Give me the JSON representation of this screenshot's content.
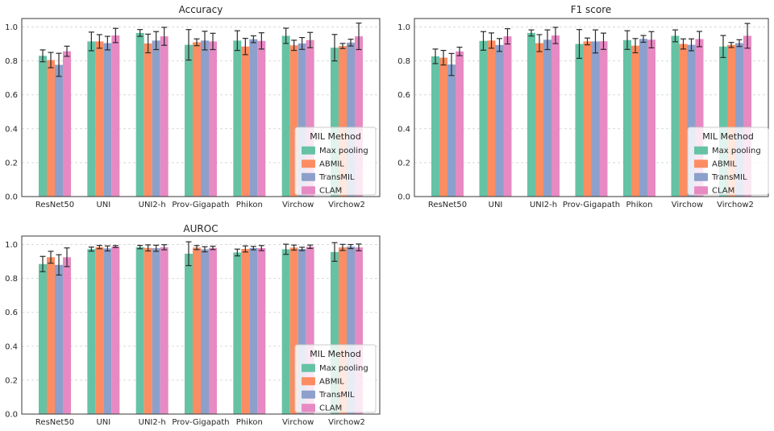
{
  "figure": {
    "background": "#ffffff",
    "grid_color": "#d9d9d9",
    "spine_color": "#3a3a3a",
    "text_color": "#262626",
    "errorbar_color": "#2b2b2b",
    "legend_fill": "rgba(255,255,255,0.8)",
    "legend_border": "#cccccc"
  },
  "palette": {
    "Max pooling": "#66c2a5",
    "ABMIL": "#fc8d62",
    "TransMIL": "#8da0cb",
    "CLAM": "#e78ac3"
  },
  "legend": {
    "title": "MIL Method",
    "entries": [
      "Max pooling",
      "ABMIL",
      "TransMIL",
      "CLAM"
    ],
    "position": "lower right"
  },
  "chart_data": [
    {
      "type": "bar",
      "title": "Accuracy",
      "categories": [
        "ResNet50",
        "UNI",
        "UNI2-h",
        "Prov-Gigapath",
        "Phikon",
        "Virchow",
        "Virchow2"
      ],
      "series": [
        {
          "name": "Max pooling",
          "color": "#66c2a5",
          "values": [
            0.83,
            0.915,
            0.965,
            0.895,
            0.92,
            0.948,
            0.878
          ],
          "errors": [
            0.035,
            0.055,
            0.02,
            0.09,
            0.058,
            0.045,
            0.078
          ]
        },
        {
          "name": "ABMIL",
          "color": "#fc8d62",
          "values": [
            0.805,
            0.915,
            0.903,
            0.91,
            0.885,
            0.892,
            0.888
          ],
          "errors": [
            0.045,
            0.04,
            0.055,
            0.02,
            0.048,
            0.03,
            0.015
          ]
        },
        {
          "name": "TransMIL",
          "color": "#8da0cb",
          "values": [
            0.777,
            0.905,
            0.92,
            0.92,
            0.928,
            0.903,
            0.908
          ],
          "errors": [
            0.068,
            0.04,
            0.053,
            0.055,
            0.02,
            0.035,
            0.02
          ]
        },
        {
          "name": "CLAM",
          "color": "#e78ac3",
          "values": [
            0.857,
            0.95,
            0.945,
            0.915,
            0.918,
            0.923,
            0.945
          ],
          "errors": [
            0.03,
            0.042,
            0.053,
            0.048,
            0.048,
            0.045,
            0.078
          ]
        }
      ],
      "ylim": [
        0,
        1.05
      ],
      "yticks": [
        0.0,
        0.2,
        0.4,
        0.6,
        0.8,
        1.0
      ],
      "grid": true,
      "error_bars": true,
      "legend_title": "MIL Method",
      "legend_position": "lower right"
    },
    {
      "type": "bar",
      "title": "F1 score",
      "categories": [
        "ResNet50",
        "UNI",
        "UNI2-h",
        "Prov-Gigapath",
        "Phikon",
        "Virchow",
        "Virchow2"
      ],
      "series": [
        {
          "name": "Max pooling",
          "color": "#66c2a5",
          "values": [
            0.827,
            0.918,
            0.965,
            0.9,
            0.923,
            0.948,
            0.885
          ],
          "errors": [
            0.043,
            0.055,
            0.018,
            0.085,
            0.055,
            0.035,
            0.065
          ]
        },
        {
          "name": "ABMIL",
          "color": "#fc8d62",
          "values": [
            0.819,
            0.92,
            0.905,
            0.915,
            0.89,
            0.9,
            0.894
          ],
          "errors": [
            0.043,
            0.045,
            0.05,
            0.02,
            0.042,
            0.03,
            0.015
          ]
        },
        {
          "name": "TransMIL",
          "color": "#8da0cb",
          "values": [
            0.779,
            0.894,
            0.925,
            0.915,
            0.93,
            0.895,
            0.905
          ],
          "errors": [
            0.065,
            0.038,
            0.058,
            0.068,
            0.02,
            0.035,
            0.02
          ]
        },
        {
          "name": "CLAM",
          "color": "#e78ac3",
          "values": [
            0.856,
            0.945,
            0.95,
            0.916,
            0.925,
            0.929,
            0.948
          ],
          "errors": [
            0.025,
            0.045,
            0.048,
            0.048,
            0.048,
            0.045,
            0.073
          ]
        }
      ],
      "ylim": [
        0,
        1.05
      ],
      "yticks": [
        0.0,
        0.2,
        0.4,
        0.6,
        0.8,
        1.0
      ],
      "grid": true,
      "error_bars": true,
      "legend_title": "MIL Method",
      "legend_position": "lower right"
    },
    {
      "type": "bar",
      "title": "AUROC",
      "categories": [
        "ResNet50",
        "UNI",
        "UNI2-h",
        "Prov-Gigapath",
        "Phikon",
        "Virchow",
        "Virchow2"
      ],
      "series": [
        {
          "name": "Max pooling",
          "color": "#66c2a5",
          "values": [
            0.885,
            0.973,
            0.985,
            0.946,
            0.953,
            0.972,
            0.956
          ],
          "errors": [
            0.045,
            0.012,
            0.01,
            0.07,
            0.02,
            0.03,
            0.055
          ]
        },
        {
          "name": "ABMIL",
          "color": "#fc8d62",
          "values": [
            0.925,
            0.985,
            0.98,
            0.982,
            0.974,
            0.982,
            0.983
          ],
          "errors": [
            0.035,
            0.01,
            0.018,
            0.012,
            0.018,
            0.015,
            0.018
          ]
        },
        {
          "name": "TransMIL",
          "color": "#8da0cb",
          "values": [
            0.88,
            0.977,
            0.978,
            0.972,
            0.979,
            0.974,
            0.988
          ],
          "errors": [
            0.06,
            0.015,
            0.018,
            0.015,
            0.01,
            0.01,
            0.012
          ]
        },
        {
          "name": "CLAM",
          "color": "#e78ac3",
          "values": [
            0.925,
            0.988,
            0.984,
            0.98,
            0.979,
            0.987,
            0.983
          ],
          "errors": [
            0.055,
            0.006,
            0.015,
            0.01,
            0.015,
            0.01,
            0.02
          ]
        }
      ],
      "ylim": [
        0,
        1.05
      ],
      "yticks": [
        0.0,
        0.2,
        0.4,
        0.6,
        0.8,
        1.0
      ],
      "grid": true,
      "error_bars": true,
      "legend_title": "MIL Method",
      "legend_position": "lower right"
    }
  ]
}
